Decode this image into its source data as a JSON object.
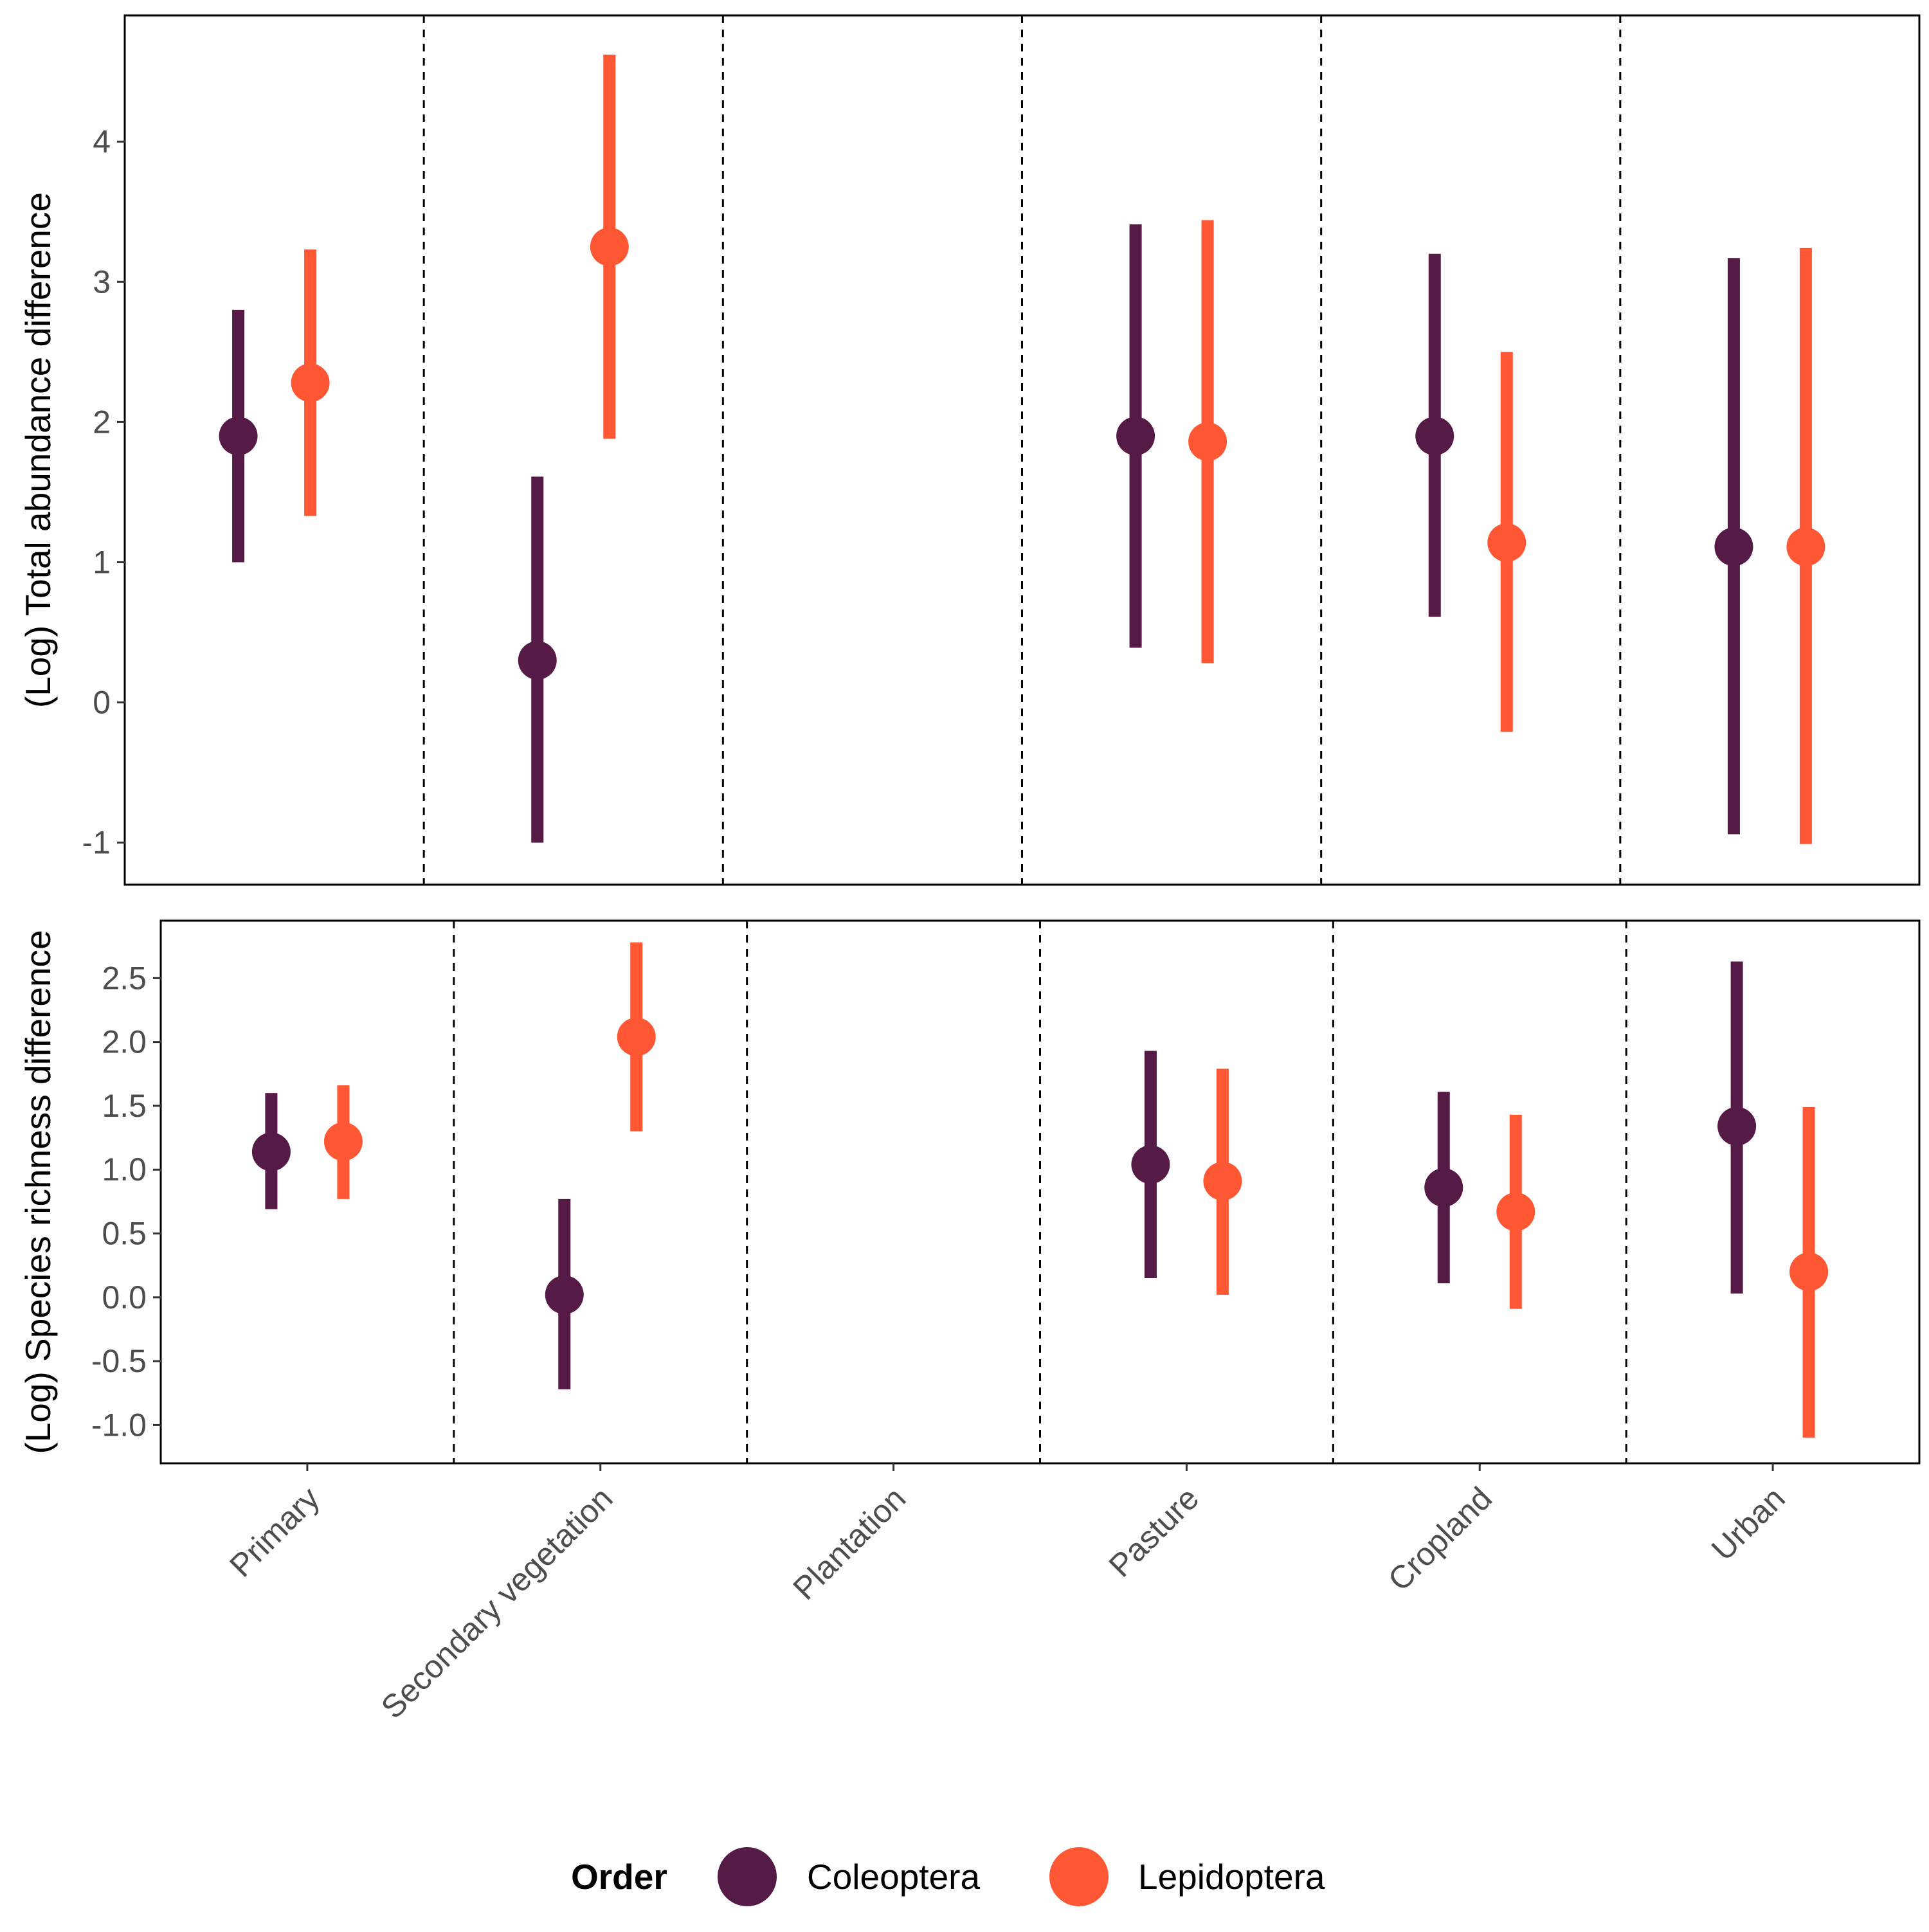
{
  "colors": {
    "Coleoptera": "#561a47",
    "Lepidoptera": "#ff5733",
    "axis": "#000000",
    "tick_text": "#4d4d4d"
  },
  "chart_data": [
    {
      "type": "pointrange",
      "ylabel": "(Log) Total abundance difference",
      "xlabel": "",
      "ylim": [
        -1.3,
        4.9
      ],
      "yticks": [
        -1,
        0,
        1,
        2,
        3,
        4
      ],
      "ytick_labels": [
        "-1",
        "0",
        "1",
        "2",
        "3",
        "4"
      ],
      "categories": [
        "Primary",
        "Secondary vegetation",
        "Plantation",
        "Pasture",
        "Cropland",
        "Urban"
      ],
      "grid": false,
      "separators": "dashed vertical lines between categories",
      "series": [
        {
          "name": "Coleoptera",
          "values": [
            1.9,
            0.3,
            null,
            1.9,
            1.9,
            1.11
          ],
          "lower": [
            1.0,
            -1.0,
            null,
            0.39,
            0.61,
            -0.94
          ],
          "upper": [
            2.8,
            1.61,
            null,
            3.41,
            3.2,
            3.17
          ]
        },
        {
          "name": "Lepidoptera",
          "values": [
            2.28,
            3.25,
            null,
            1.86,
            1.14,
            1.11
          ],
          "lower": [
            1.33,
            1.88,
            null,
            0.28,
            -0.21,
            -1.01
          ],
          "upper": [
            3.23,
            4.62,
            null,
            3.44,
            2.5,
            3.24
          ]
        }
      ]
    },
    {
      "type": "pointrange",
      "ylabel": "(Log) Species richness difference",
      "xlabel": "",
      "ylim": [
        -1.3,
        2.95
      ],
      "yticks": [
        -1.0,
        -0.5,
        0.0,
        0.5,
        1.0,
        1.5,
        2.0,
        2.5
      ],
      "ytick_labels": [
        "-1.0",
        "-0.5",
        "0.0",
        "0.5",
        "1.0",
        "1.5",
        "2.0",
        "2.5"
      ],
      "categories": [
        "Primary",
        "Secondary vegetation",
        "Plantation",
        "Pasture",
        "Cropland",
        "Urban"
      ],
      "grid": false,
      "separators": "dashed vertical lines between categories",
      "series": [
        {
          "name": "Coleoptera",
          "values": [
            1.14,
            0.02,
            null,
            1.04,
            0.86,
            1.34
          ],
          "lower": [
            0.69,
            -0.72,
            null,
            0.15,
            0.11,
            0.03
          ],
          "upper": [
            1.6,
            0.77,
            null,
            1.93,
            1.61,
            2.63
          ]
        },
        {
          "name": "Lepidoptera",
          "values": [
            1.22,
            2.04,
            null,
            0.91,
            0.67,
            0.2
          ],
          "lower": [
            0.77,
            1.3,
            null,
            0.02,
            -0.09,
            -1.1
          ],
          "upper": [
            1.66,
            2.78,
            null,
            1.79,
            1.43,
            1.49
          ]
        }
      ]
    }
  ],
  "legend": {
    "position": "bottom",
    "title": "Order",
    "entries": [
      "Coleoptera",
      "Lepidoptera"
    ]
  }
}
